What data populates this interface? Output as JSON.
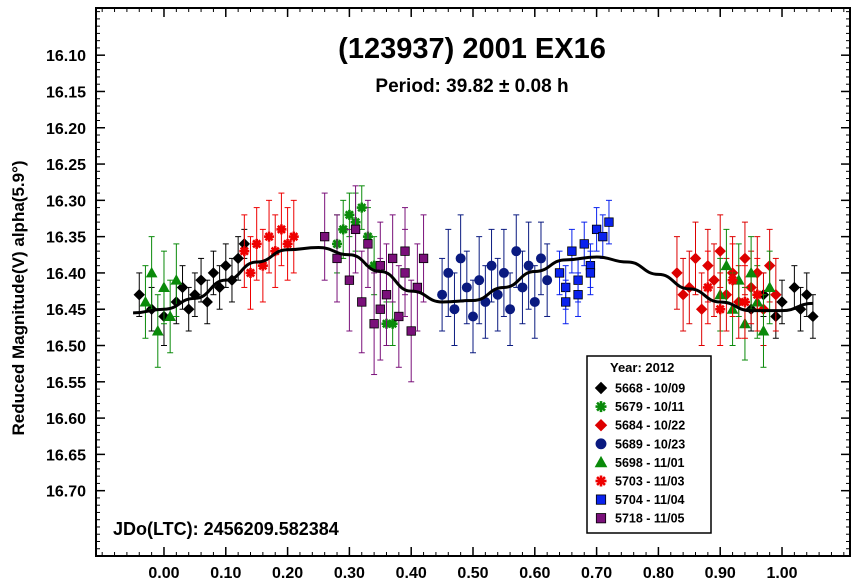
{
  "chart_data": {
    "type": "scatter",
    "title": "(123937) 2001 EX16",
    "subtitle": "Period: 39.82 ± 0.08 h",
    "xlabel": "",
    "ylabel": "Reduced Magnitude(V) alpha(5.9°)",
    "xlim": [
      -0.11,
      1.11
    ],
    "ylim": [
      16.79,
      16.035
    ],
    "y_inverted": true,
    "x_ticks": [
      "0.00",
      "0.10",
      "0.20",
      "0.30",
      "0.40",
      "0.50",
      "0.60",
      "0.70",
      "0.80",
      "0.90",
      "1.00"
    ],
    "y_ticks": [
      "16.10",
      "16.15",
      "16.20",
      "16.25",
      "16.30",
      "16.35",
      "16.40",
      "16.45",
      "16.50",
      "16.55",
      "16.60",
      "16.65",
      "16.70"
    ],
    "annotation": "JDo(LTC): 2456209.582384",
    "legend_title": "Year: 2012",
    "legend_position": "bottom-right",
    "grid": false,
    "fit_curve": {
      "color": "#000000",
      "points": [
        [
          -0.05,
          16.455
        ],
        [
          0.0,
          16.45
        ],
        [
          0.05,
          16.435
        ],
        [
          0.1,
          16.41
        ],
        [
          0.15,
          16.385
        ],
        [
          0.2,
          16.368
        ],
        [
          0.25,
          16.365
        ],
        [
          0.3,
          16.375
        ],
        [
          0.35,
          16.398
        ],
        [
          0.4,
          16.425
        ],
        [
          0.45,
          16.44
        ],
        [
          0.5,
          16.438
        ],
        [
          0.55,
          16.42
        ],
        [
          0.6,
          16.398
        ],
        [
          0.65,
          16.382
        ],
        [
          0.7,
          16.378
        ],
        [
          0.75,
          16.385
        ],
        [
          0.8,
          16.402
        ],
        [
          0.85,
          16.422
        ],
        [
          0.9,
          16.44
        ],
        [
          0.95,
          16.452
        ],
        [
          1.0,
          16.452
        ],
        [
          1.05,
          16.442
        ]
      ]
    },
    "series": [
      {
        "name": "5668 - 10/09",
        "marker": "diamond",
        "color": "#000000",
        "x": [
          -0.04,
          -0.02,
          0.0,
          0.02,
          0.03,
          0.04,
          0.05,
          0.06,
          0.07,
          0.08,
          0.09,
          0.1,
          0.11,
          0.12,
          0.13,
          0.95,
          0.97,
          0.99,
          1.0,
          1.02,
          1.03,
          1.04,
          1.05
        ],
        "y": [
          16.43,
          16.45,
          16.46,
          16.44,
          16.42,
          16.45,
          16.43,
          16.41,
          16.44,
          16.4,
          16.42,
          16.39,
          16.41,
          16.38,
          16.36,
          16.45,
          16.43,
          16.46,
          16.44,
          16.42,
          16.45,
          16.43,
          16.46
        ],
        "err": [
          0.03,
          0.03,
          0.04,
          0.03,
          0.03,
          0.03,
          0.03,
          0.03,
          0.03,
          0.03,
          0.03,
          0.03,
          0.03,
          0.03,
          0.02,
          0.03,
          0.03,
          0.03,
          0.03,
          0.03,
          0.03,
          0.03,
          0.03
        ]
      },
      {
        "name": "5679 - 10/11",
        "marker": "asterisk",
        "color": "#0a8a0a",
        "x": [
          0.28,
          0.29,
          0.3,
          0.31,
          0.32,
          0.33,
          0.34,
          0.36,
          0.37
        ],
        "y": [
          16.36,
          16.34,
          16.32,
          16.33,
          16.31,
          16.35,
          16.39,
          16.47,
          16.47
        ],
        "err": [
          0.04,
          0.04,
          0.03,
          0.04,
          0.03,
          0.04,
          0.04,
          0.03,
          0.03
        ]
      },
      {
        "name": "5684 - 10/22",
        "marker": "diamond",
        "color": "#dd0000",
        "x": [
          0.83,
          0.84,
          0.85,
          0.86,
          0.87,
          0.88,
          0.89,
          0.9,
          0.91,
          0.92,
          0.93,
          0.94,
          0.95,
          0.96,
          0.97,
          0.98,
          0.99
        ],
        "y": [
          16.4,
          16.43,
          16.42,
          16.38,
          16.45,
          16.39,
          16.41,
          16.37,
          16.43,
          16.4,
          16.44,
          16.38,
          16.42,
          16.4,
          16.45,
          16.39,
          16.43
        ],
        "err": [
          0.05,
          0.05,
          0.05,
          0.05,
          0.05,
          0.05,
          0.05,
          0.05,
          0.05,
          0.05,
          0.05,
          0.05,
          0.05,
          0.05,
          0.05,
          0.05,
          0.05
        ]
      },
      {
        "name": "5689 - 10/23",
        "marker": "circle",
        "color": "#0a1a80",
        "x": [
          0.45,
          0.46,
          0.47,
          0.48,
          0.49,
          0.5,
          0.51,
          0.52,
          0.53,
          0.54,
          0.55,
          0.56,
          0.57,
          0.58,
          0.59,
          0.6,
          0.61,
          0.62
        ],
        "y": [
          16.43,
          16.4,
          16.45,
          16.38,
          16.42,
          16.46,
          16.41,
          16.44,
          16.39,
          16.43,
          16.4,
          16.45,
          16.37,
          16.42,
          16.39,
          16.44,
          16.38,
          16.41
        ],
        "err": [
          0.05,
          0.06,
          0.05,
          0.06,
          0.05,
          0.05,
          0.06,
          0.05,
          0.05,
          0.05,
          0.06,
          0.05,
          0.05,
          0.05,
          0.06,
          0.05,
          0.05,
          0.05
        ]
      },
      {
        "name": "5698 - 11/01",
        "marker": "triangle",
        "color": "#0a8a0a",
        "x": [
          -0.03,
          -0.02,
          -0.01,
          0.0,
          0.01,
          0.02,
          0.9,
          0.91,
          0.92,
          0.93,
          0.94,
          0.95,
          0.96,
          0.97,
          0.98
        ],
        "y": [
          16.44,
          16.4,
          16.48,
          16.42,
          16.46,
          16.41,
          16.43,
          16.39,
          16.45,
          16.41,
          16.47,
          16.4,
          16.44,
          16.48,
          16.42
        ],
        "err": [
          0.05,
          0.05,
          0.05,
          0.05,
          0.05,
          0.05,
          0.05,
          0.05,
          0.05,
          0.05,
          0.05,
          0.05,
          0.05,
          0.05,
          0.05
        ]
      },
      {
        "name": "5703 - 11/03",
        "marker": "asterisk",
        "color": "#ee0000",
        "x": [
          0.13,
          0.14,
          0.15,
          0.16,
          0.17,
          0.18,
          0.19,
          0.2,
          0.21,
          0.88,
          0.9,
          0.92,
          0.94,
          0.96
        ],
        "y": [
          16.37,
          16.4,
          16.36,
          16.39,
          16.35,
          16.37,
          16.34,
          16.36,
          16.35,
          16.42,
          16.45,
          16.41,
          16.44,
          16.43
        ],
        "err": [
          0.05,
          0.05,
          0.05,
          0.05,
          0.05,
          0.05,
          0.05,
          0.05,
          0.05,
          0.05,
          0.05,
          0.05,
          0.05,
          0.05
        ]
      },
      {
        "name": "5704 - 11/04",
        "marker": "square",
        "color": "#0a22ee",
        "x": [
          0.64,
          0.65,
          0.66,
          0.67,
          0.68,
          0.69,
          0.7,
          0.71,
          0.72,
          0.65,
          0.67,
          0.69
        ],
        "y": [
          16.4,
          16.42,
          16.37,
          16.41,
          16.36,
          16.39,
          16.34,
          16.35,
          16.33,
          16.44,
          16.43,
          16.4
        ],
        "err": [
          0.03,
          0.03,
          0.03,
          0.03,
          0.03,
          0.03,
          0.03,
          0.03,
          0.03,
          0.03,
          0.03,
          0.03
        ]
      },
      {
        "name": "5718 - 11/05",
        "marker": "square",
        "color": "#7a107a",
        "x": [
          0.26,
          0.28,
          0.3,
          0.32,
          0.33,
          0.34,
          0.35,
          0.36,
          0.37,
          0.38,
          0.39,
          0.4,
          0.41,
          0.42,
          0.31,
          0.35,
          0.39
        ],
        "y": [
          16.35,
          16.38,
          16.41,
          16.44,
          16.36,
          16.47,
          16.39,
          16.43,
          16.38,
          16.46,
          16.4,
          16.48,
          16.42,
          16.38,
          16.34,
          16.45,
          16.37
        ],
        "err": [
          0.06,
          0.06,
          0.07,
          0.07,
          0.06,
          0.07,
          0.06,
          0.07,
          0.06,
          0.07,
          0.06,
          0.07,
          0.06,
          0.06,
          0.06,
          0.07,
          0.06
        ]
      }
    ]
  }
}
